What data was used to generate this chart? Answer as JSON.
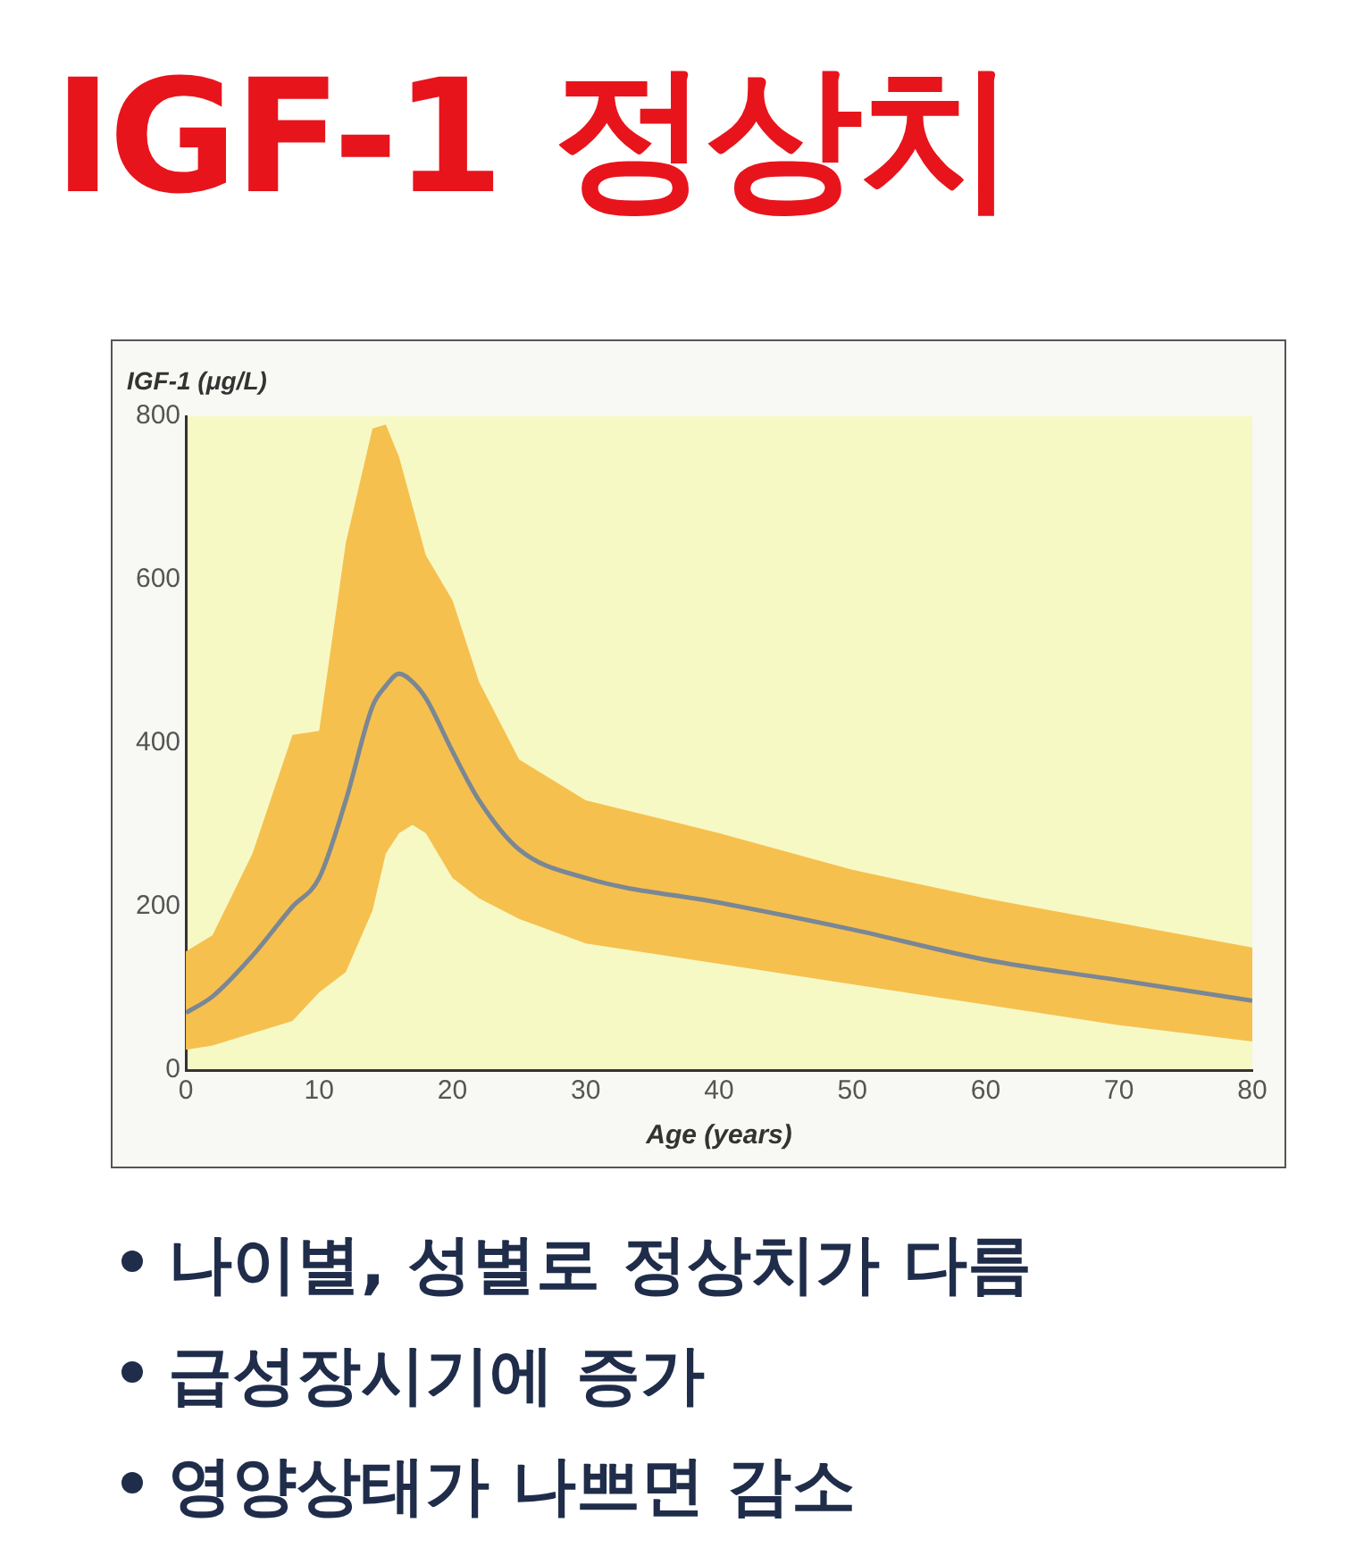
{
  "chart_data": {
    "type": "line",
    "title": "IGF-1 정상치",
    "xlabel": "Age (years)",
    "ylabel": "IGF-1 (μg/L)",
    "x": [
      0,
      2,
      5,
      8,
      10,
      12,
      14,
      15,
      16,
      17,
      18,
      20,
      22,
      25,
      30,
      40,
      50,
      60,
      70,
      80
    ],
    "series": [
      {
        "color": "#7a8794",
        "values": [
          70,
          90,
          140,
          200,
          235,
          330,
          445,
          470,
          485,
          475,
          455,
          390,
          330,
          270,
          235,
          205,
          172,
          135,
          110,
          85
        ],
        "lower": [
          25,
          30,
          45,
          60,
          95,
          120,
          195,
          265,
          290,
          300,
          290,
          235,
          210,
          185,
          155,
          130,
          105,
          80,
          55,
          35
        ],
        "upper": [
          145,
          165,
          265,
          410,
          415,
          645,
          785,
          790,
          750,
          690,
          630,
          575,
          475,
          380,
          330,
          290,
          245,
          210,
          180,
          150
        ]
      }
    ],
    "xlim": [
      0,
      80
    ],
    "xticks": [
      0,
      10,
      20,
      30,
      40,
      50,
      60,
      70,
      80
    ],
    "ylim": [
      0,
      800
    ],
    "yticks": [
      0,
      200,
      400,
      600,
      800
    ],
    "grid": false,
    "legend": false,
    "marker": "none",
    "line_style": "solid",
    "annotations": [
      "나이별, 성별로 정상치가 다름",
      "급성장시기에 증가",
      "영양상태가 나쁘면 감소"
    ]
  }
}
